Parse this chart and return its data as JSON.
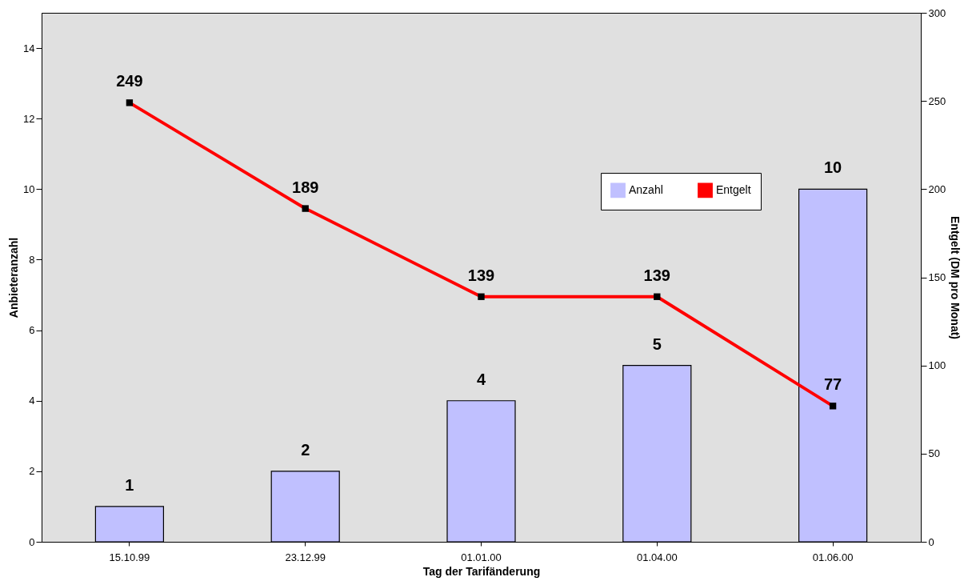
{
  "chart_data": {
    "type": "bar",
    "xlabel": "Tag der Tarifänderung",
    "ylabel": "Anbieteranzahl",
    "y2label": "Entgelt (DM pro Monat)",
    "categories": [
      "15.10.99",
      "23.12.99",
      "01.01.00",
      "01.04.00",
      "01.06.00"
    ],
    "series": [
      {
        "name": "Anzahl",
        "color": "#c0c0ff",
        "values": [
          1,
          2,
          4,
          5,
          10
        ]
      },
      {
        "name": "Entgelt",
        "type": "line",
        "axis": "y2",
        "color": "#ff0000",
        "marker": "square",
        "values": [
          249,
          189,
          139,
          139,
          77
        ]
      }
    ],
    "ylim": [
      0,
      15
    ],
    "yticks": [
      0,
      2,
      4,
      6,
      8,
      10,
      12,
      14
    ],
    "y2lim": [
      0,
      300
    ],
    "y2ticks": [
      0,
      50,
      100,
      150,
      200,
      250,
      300
    ],
    "data_labels": true,
    "grid": false,
    "legend": "top right"
  }
}
